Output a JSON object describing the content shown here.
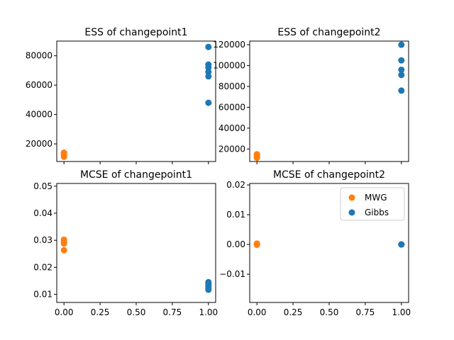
{
  "chart_data": [
    {
      "type": "scatter",
      "title": "ESS of changepoint1",
      "xlim": [
        -0.05,
        1.05
      ],
      "ylim": [
        8000,
        90000
      ],
      "xticks": [],
      "yticks": [
        20000,
        40000,
        60000,
        80000
      ],
      "ytick_labels": [
        "20000",
        "40000",
        "60000",
        "80000"
      ],
      "show_x_tick_marks": [
        0.0,
        0.25,
        0.5,
        0.75,
        1.0
      ],
      "series": [
        {
          "color": "#ff7f0e",
          "points": [
            [
              0,
              14000
            ],
            [
              0,
              13200
            ],
            [
              0,
              12500
            ],
            [
              0,
              11200
            ]
          ]
        },
        {
          "color": "#1f77b4",
          "points": [
            [
              1,
              86000
            ],
            [
              1,
              74000
            ],
            [
              1,
              72000
            ],
            [
              1,
              69000
            ],
            [
              1,
              66000
            ],
            [
              1,
              48000
            ]
          ]
        }
      ]
    },
    {
      "type": "scatter",
      "title": "ESS of changepoint2",
      "xlim": [
        -0.05,
        1.05
      ],
      "ylim": [
        8000,
        123500
      ],
      "xticks": [],
      "yticks": [
        20000,
        40000,
        60000,
        80000,
        100000,
        120000
      ],
      "ytick_labels": [
        "20000",
        "40000",
        "60000",
        "80000",
        "100000",
        "120000"
      ],
      "show_x_tick_marks": [
        0.0,
        0.25,
        0.5,
        0.75,
        1.0
      ],
      "series": [
        {
          "color": "#ff7f0e",
          "points": [
            [
              0,
              15000
            ],
            [
              0,
              13500
            ],
            [
              0,
              12500
            ],
            [
              0,
              11500
            ]
          ]
        },
        {
          "color": "#1f77b4",
          "points": [
            [
              1,
              120000
            ],
            [
              1,
              105000
            ],
            [
              1,
              96000
            ],
            [
              1,
              91000
            ],
            [
              1,
              76000
            ]
          ]
        }
      ]
    },
    {
      "type": "scatter",
      "title": "MCSE of changepoint1",
      "xlim": [
        -0.05,
        1.05
      ],
      "ylim": [
        0.007,
        0.051
      ],
      "xticks": [
        0.0,
        0.25,
        0.5,
        0.75,
        1.0
      ],
      "xtick_labels": [
        "0.00",
        "0.25",
        "0.50",
        "0.75",
        "1.00"
      ],
      "yticks": [
        0.01,
        0.02,
        0.03,
        0.04,
        0.05
      ],
      "ytick_labels": [
        "0.01",
        "0.02",
        "0.03",
        "0.04",
        "0.05"
      ],
      "series": [
        {
          "color": "#ff7f0e",
          "points": [
            [
              0,
              0.0302
            ],
            [
              0,
              0.0295
            ],
            [
              0,
              0.0288
            ],
            [
              0,
              0.0263
            ]
          ]
        },
        {
          "color": "#1f77b4",
          "points": [
            [
              1,
              0.0145
            ],
            [
              1,
              0.0138
            ],
            [
              1,
              0.013
            ],
            [
              1,
              0.0123
            ],
            [
              1,
              0.0117
            ]
          ]
        }
      ]
    },
    {
      "type": "scatter",
      "title": "MCSE of changepoint2",
      "xlim": [
        -0.05,
        1.05
      ],
      "ylim": [
        -0.0195,
        0.0205
      ],
      "xticks": [
        0.0,
        0.25,
        0.5,
        0.75,
        1.0
      ],
      "xtick_labels": [
        "0.00",
        "0.25",
        "0.50",
        "0.75",
        "1.00"
      ],
      "yticks": [
        -0.01,
        0.0,
        0.01,
        0.02
      ],
      "ytick_labels": [
        "−0.01",
        "0.00",
        "0.01",
        "0.02"
      ],
      "series": [
        {
          "color": "#ff7f0e",
          "points": [
            [
              0,
              0.0003
            ],
            [
              0,
              0.0001
            ],
            [
              0,
              -0.0001
            ]
          ]
        },
        {
          "color": "#1f77b4",
          "points": [
            [
              1,
              0.0
            ],
            [
              1,
              0.0
            ],
            [
              1,
              0.0
            ]
          ]
        }
      ],
      "legend": {
        "placement": "upper-right",
        "entries": [
          {
            "label": "MWG",
            "color": "#ff7f0e"
          },
          {
            "label": "Gibbs",
            "color": "#1f77b4"
          }
        ]
      }
    }
  ]
}
